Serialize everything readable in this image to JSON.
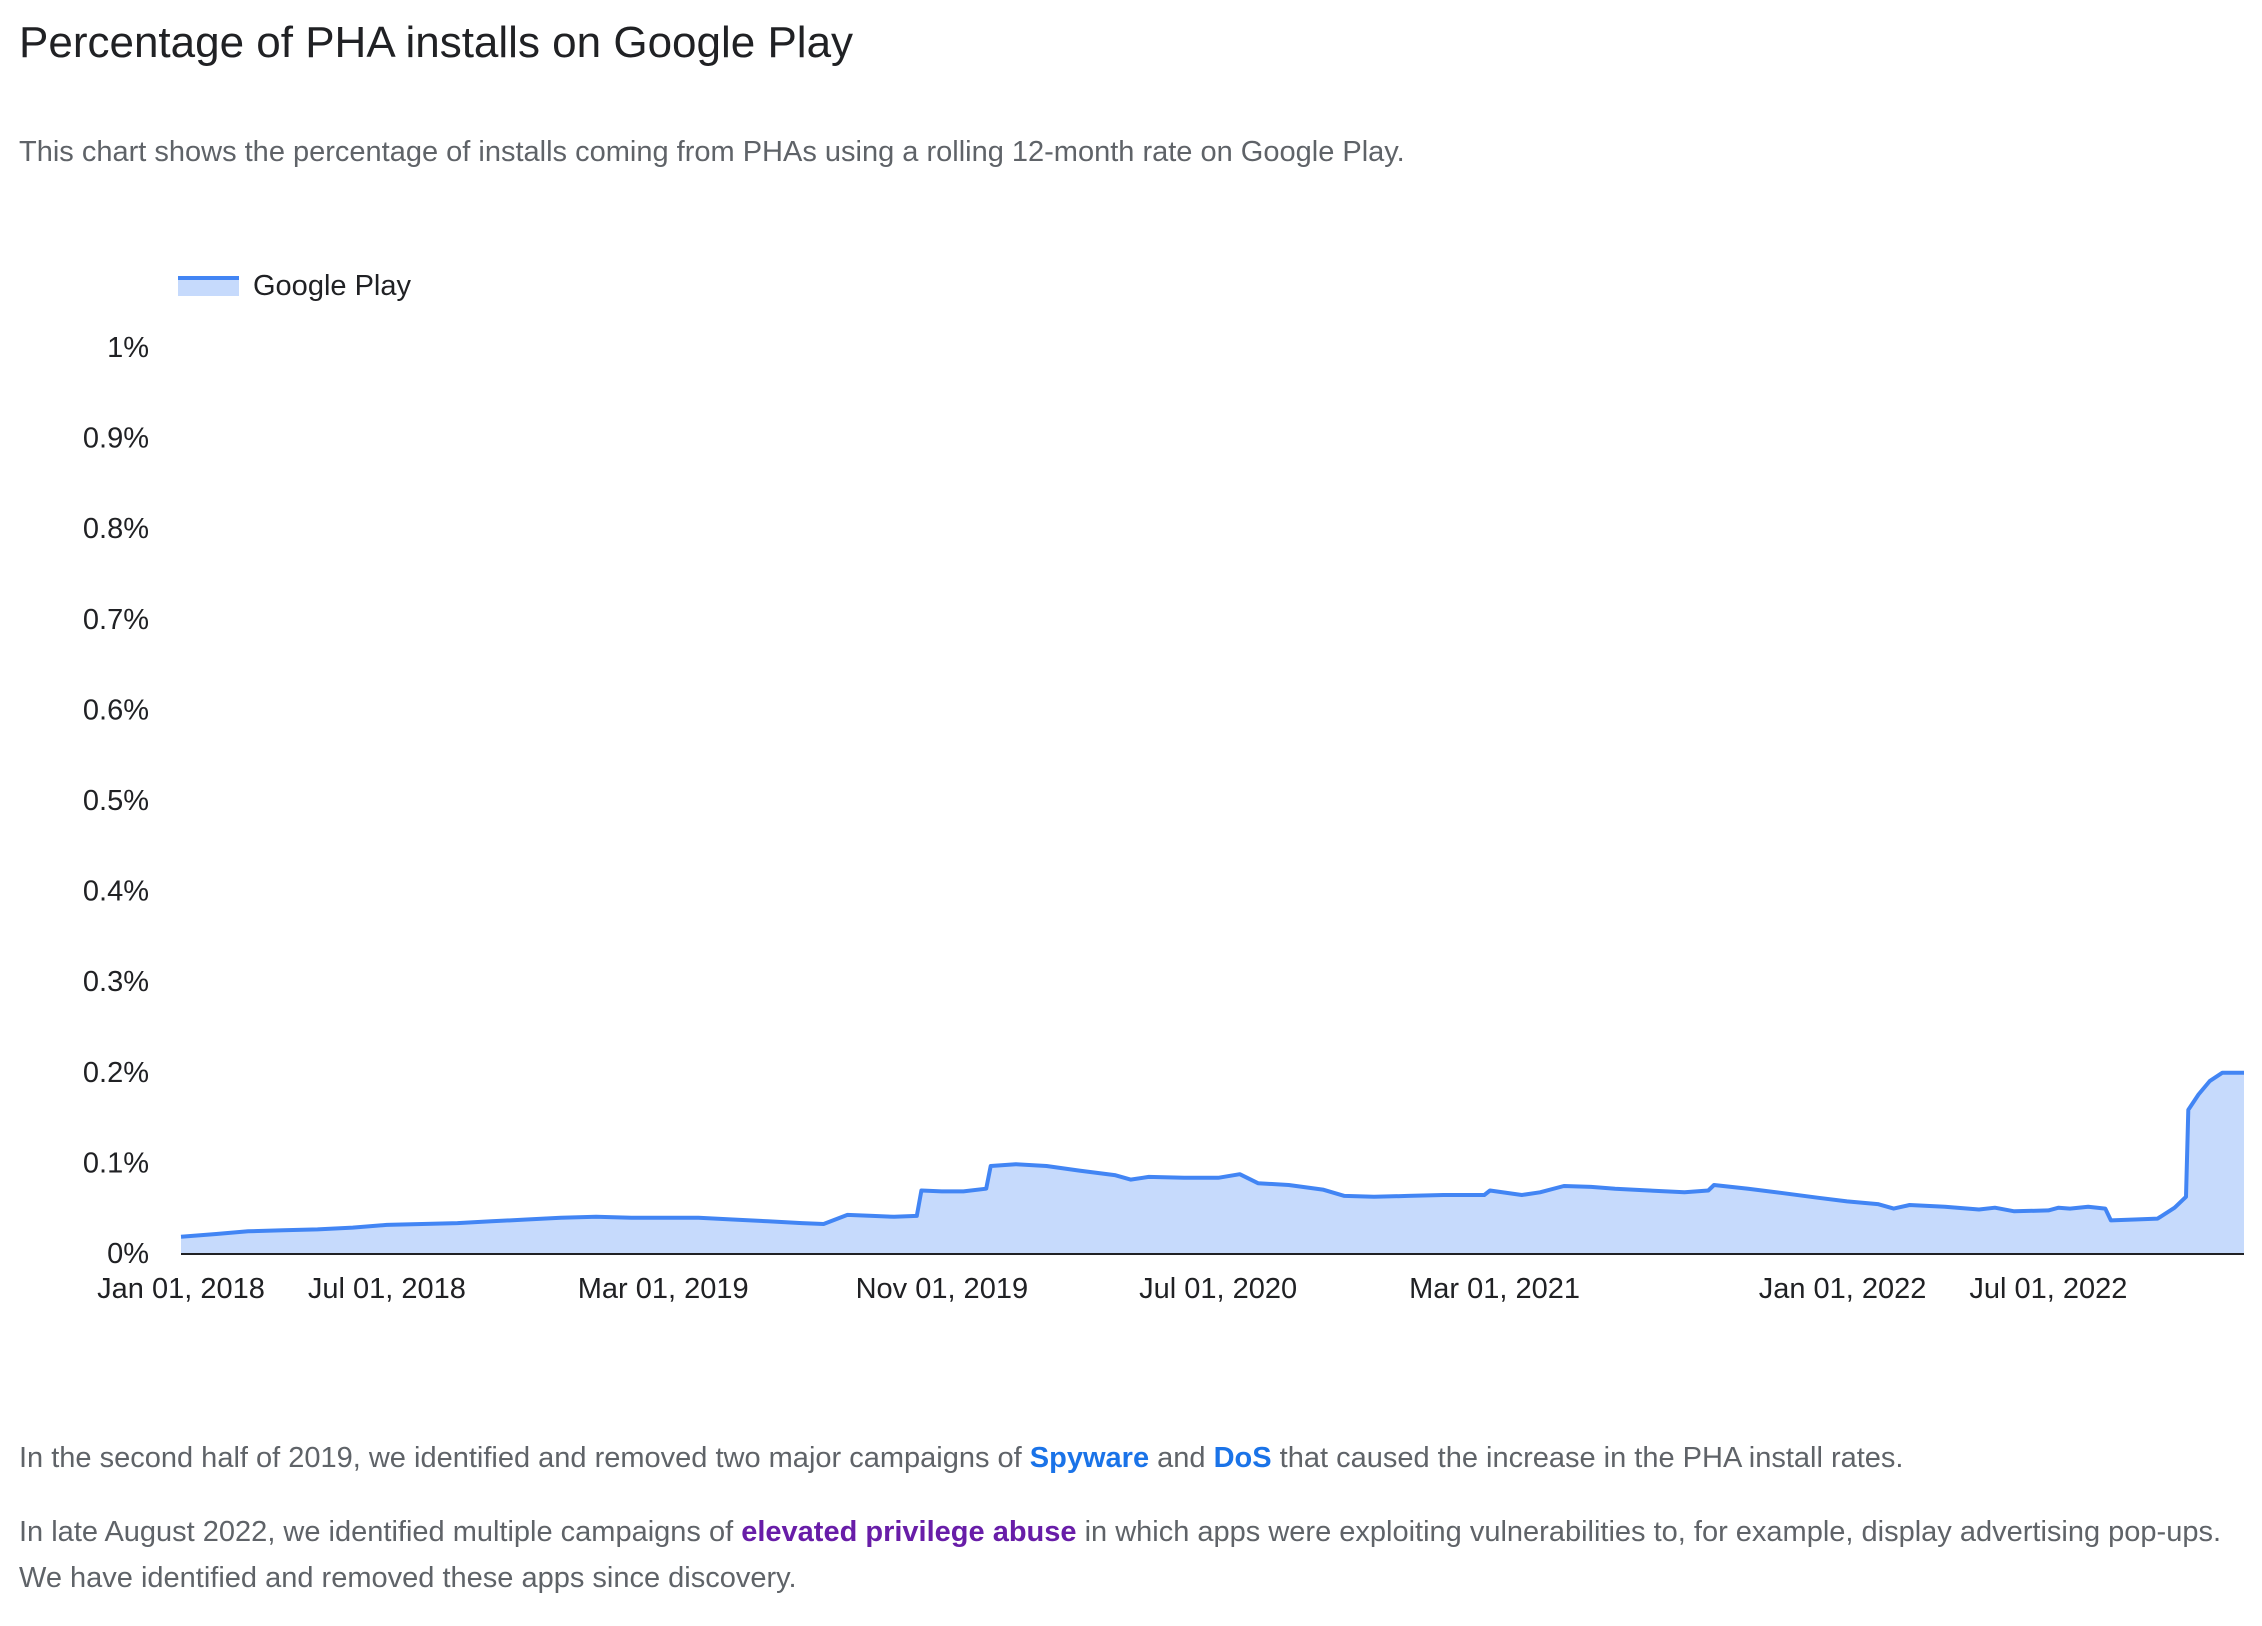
{
  "page": {
    "title": "Percentage of PHA installs on Google Play",
    "subtitle": "This chart shows the percentage of installs coming from PHAs using a rolling 12-month rate on Google Play."
  },
  "legend": {
    "label": "Google Play"
  },
  "colors": {
    "line": "#4285f4",
    "fill": "#c6dafc",
    "axis": "#202124",
    "link": "#1a73e8",
    "link_visited": "#681da8"
  },
  "chart_data": {
    "type": "area",
    "title": "Percentage of PHA installs on Google Play",
    "xlabel": "",
    "ylabel": "",
    "ylim": [
      0,
      1
    ],
    "grid": false,
    "legend_position": "top-left",
    "x_ticks": [
      "Jan 01, 2018",
      "Jul 01, 2018",
      "Mar 01, 2019",
      "Nov 01, 2019",
      "Jul 01, 2020",
      "Mar 01, 2021",
      "Jan 01, 2022",
      "Jul 01, 2022"
    ],
    "y_ticks": [
      "0%",
      "0.1%",
      "0.2%",
      "0.3%",
      "0.4%",
      "0.5%",
      "0.6%",
      "0.7%",
      "0.8%",
      "0.9%",
      "1%"
    ],
    "series": [
      {
        "name": "Google Play",
        "points": [
          [
            "2018-01-01",
            0.018
          ],
          [
            "2018-02-01",
            0.021
          ],
          [
            "2018-03-01",
            0.024
          ],
          [
            "2018-04-01",
            0.025
          ],
          [
            "2018-05-01",
            0.026
          ],
          [
            "2018-06-01",
            0.028
          ],
          [
            "2018-07-01",
            0.031
          ],
          [
            "2018-08-01",
            0.032
          ],
          [
            "2018-09-01",
            0.033
          ],
          [
            "2018-10-01",
            0.035
          ],
          [
            "2018-11-01",
            0.037
          ],
          [
            "2018-12-01",
            0.039
          ],
          [
            "2019-01-01",
            0.04
          ],
          [
            "2019-02-01",
            0.039
          ],
          [
            "2019-03-01",
            0.039
          ],
          [
            "2019-04-01",
            0.039
          ],
          [
            "2019-05-01",
            0.037
          ],
          [
            "2019-06-01",
            0.035
          ],
          [
            "2019-07-01",
            0.033
          ],
          [
            "2019-07-20",
            0.032
          ],
          [
            "2019-08-10",
            0.042
          ],
          [
            "2019-09-01",
            0.041
          ],
          [
            "2019-09-20",
            0.04
          ],
          [
            "2019-10-10",
            0.041
          ],
          [
            "2019-10-14",
            0.069
          ],
          [
            "2019-11-01",
            0.068
          ],
          [
            "2019-11-20",
            0.068
          ],
          [
            "2019-12-10",
            0.071
          ],
          [
            "2019-12-14",
            0.096
          ],
          [
            "2020-01-05",
            0.098
          ],
          [
            "2020-02-01",
            0.096
          ],
          [
            "2020-03-01",
            0.091
          ],
          [
            "2020-04-01",
            0.086
          ],
          [
            "2020-04-15",
            0.081
          ],
          [
            "2020-05-01",
            0.084
          ],
          [
            "2020-06-01",
            0.083
          ],
          [
            "2020-07-01",
            0.083
          ],
          [
            "2020-07-20",
            0.087
          ],
          [
            "2020-08-05",
            0.077
          ],
          [
            "2020-09-01",
            0.075
          ],
          [
            "2020-10-01",
            0.07
          ],
          [
            "2020-10-20",
            0.063
          ],
          [
            "2020-11-15",
            0.062
          ],
          [
            "2020-12-15",
            0.063
          ],
          [
            "2021-01-15",
            0.064
          ],
          [
            "2021-02-20",
            0.064
          ],
          [
            "2021-02-25",
            0.069
          ],
          [
            "2021-03-25",
            0.064
          ],
          [
            "2021-04-10",
            0.067
          ],
          [
            "2021-05-01",
            0.074
          ],
          [
            "2021-05-25",
            0.073
          ],
          [
            "2021-06-15",
            0.071
          ],
          [
            "2021-07-15",
            0.069
          ],
          [
            "2021-08-15",
            0.067
          ],
          [
            "2021-09-05",
            0.069
          ],
          [
            "2021-09-10",
            0.075
          ],
          [
            "2021-10-10",
            0.071
          ],
          [
            "2021-11-10",
            0.066
          ],
          [
            "2021-12-10",
            0.061
          ],
          [
            "2022-01-05",
            0.057
          ],
          [
            "2022-02-01",
            0.054
          ],
          [
            "2022-02-15",
            0.049
          ],
          [
            "2022-03-01",
            0.053
          ],
          [
            "2022-04-01",
            0.051
          ],
          [
            "2022-05-01",
            0.048
          ],
          [
            "2022-05-15",
            0.05
          ],
          [
            "2022-06-01",
            0.046
          ],
          [
            "2022-07-01",
            0.047
          ],
          [
            "2022-07-10",
            0.05
          ],
          [
            "2022-07-20",
            0.049
          ],
          [
            "2022-08-05",
            0.051
          ],
          [
            "2022-08-20",
            0.049
          ],
          [
            "2022-08-25",
            0.036
          ],
          [
            "2022-09-15",
            0.037
          ],
          [
            "2022-10-05",
            0.038
          ],
          [
            "2022-10-20",
            0.05
          ],
          [
            "2022-10-30",
            0.062
          ],
          [
            "2022-11-01",
            0.158
          ],
          [
            "2022-11-10",
            0.175
          ],
          [
            "2022-11-20",
            0.19
          ],
          [
            "2022-12-01",
            0.199
          ],
          [
            "2022-12-20",
            0.199
          ]
        ]
      }
    ]
  },
  "paragraphs": {
    "p1": {
      "before": "In the second half of 2019, we identified and removed two major campaigns of ",
      "link1": "Spyware",
      "mid": " and ",
      "link2": "DoS",
      "after": " that caused the increase in the PHA install rates."
    },
    "p2": {
      "before": "In late August 2022, we identified multiple campaigns of ",
      "link": "elevated privilege abuse",
      "after": " in which apps were exploiting vulnerabilities to, for example, display advertising pop-ups. We have identified and removed these apps since discovery."
    }
  }
}
